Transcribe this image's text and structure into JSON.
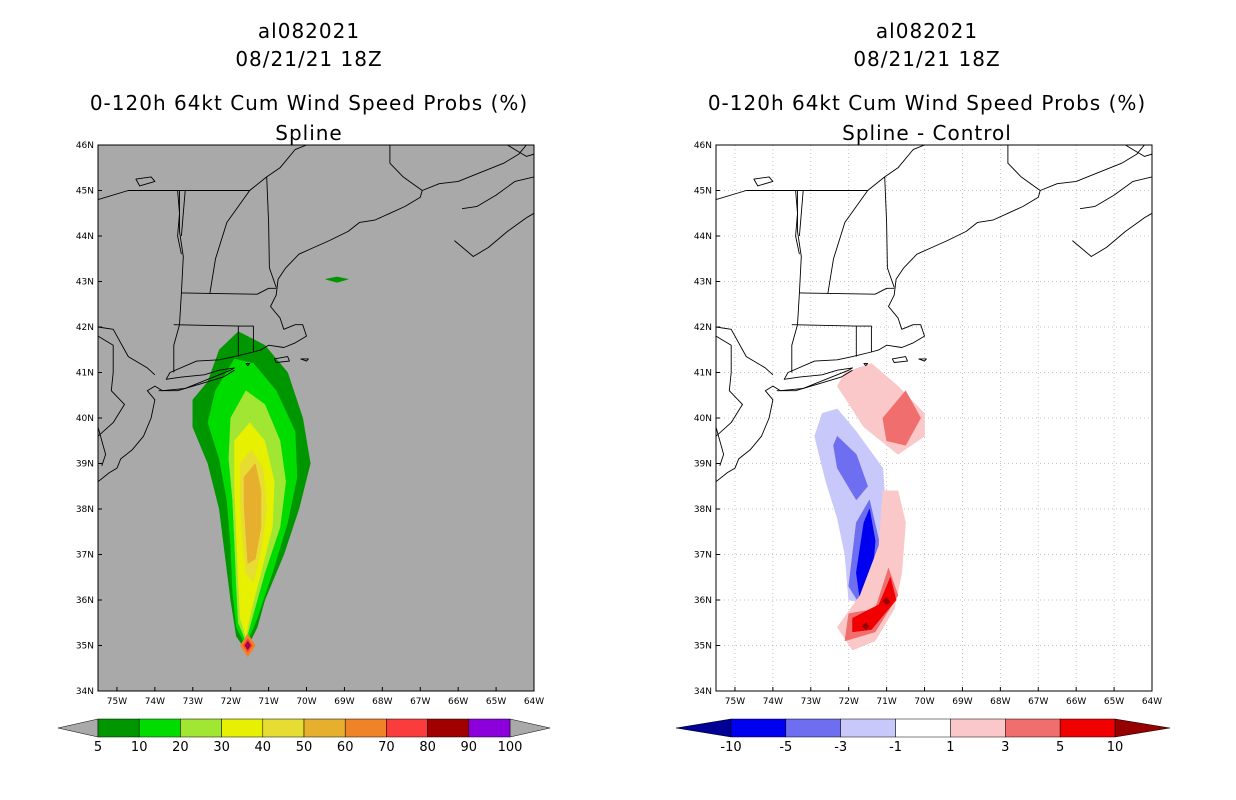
{
  "chart_data": [
    {
      "type": "heatmap",
      "panel": "left",
      "title_lines": [
        "al082021",
        "08/21/21 18Z",
        "0-120h 64kt Cum Wind Speed Probs (%)",
        "Spline"
      ],
      "x_ticks": [
        "75W",
        "74W",
        "73W",
        "72W",
        "71W",
        "70W",
        "69W",
        "68W",
        "67W",
        "66W",
        "65W",
        "64W"
      ],
      "y_ticks": [
        "46N",
        "45N",
        "44N",
        "43N",
        "42N",
        "41N",
        "40N",
        "39N",
        "38N",
        "37N",
        "36N",
        "35N",
        "34N"
      ],
      "xlim": [
        -75.5,
        -64
      ],
      "ylim": [
        34,
        46
      ],
      "grid": false,
      "background": "#a9a9a9",
      "colorbar": {
        "labels": [
          "5",
          "10",
          "20",
          "30",
          "40",
          "50",
          "60",
          "70",
          "80",
          "90",
          "100"
        ],
        "colors": [
          "#009600",
          "#00dc00",
          "#a0e632",
          "#e6f000",
          "#e6dc32",
          "#e6af2d",
          "#f08228",
          "#fa3c3c",
          "#a00000",
          "#8c00dc"
        ],
        "under_color": "#a9a9a9",
        "over_color": "#a9a9a9"
      },
      "levels": [
        {
          "min": 5,
          "color": "#009600",
          "pts": [
            [
              -72.6,
              40.8
            ],
            [
              -72.3,
              41.5
            ],
            [
              -71.8,
              41.9
            ],
            [
              -71.1,
              41.6
            ],
            [
              -70.5,
              41.0
            ],
            [
              -70.1,
              40.0
            ],
            [
              -69.9,
              39.0
            ],
            [
              -70.2,
              38.0
            ],
            [
              -70.6,
              37.0
            ],
            [
              -71.1,
              36.0
            ],
            [
              -71.3,
              35.4
            ],
            [
              -71.6,
              34.9
            ],
            [
              -71.85,
              35.2
            ],
            [
              -72.0,
              36.0
            ],
            [
              -72.15,
              37.0
            ],
            [
              -72.3,
              38.0
            ],
            [
              -72.6,
              39.0
            ],
            [
              -73.0,
              39.8
            ],
            [
              -73.0,
              40.4
            ]
          ]
        },
        {
          "min": 10,
          "color": "#00dc00",
          "pts": [
            [
              -72.4,
              40.6
            ],
            [
              -71.9,
              41.3
            ],
            [
              -71.4,
              41.2
            ],
            [
              -70.8,
              40.6
            ],
            [
              -70.3,
              39.7
            ],
            [
              -70.25,
              38.7
            ],
            [
              -70.5,
              37.7
            ],
            [
              -70.9,
              36.6
            ],
            [
              -71.3,
              35.6
            ],
            [
              -71.6,
              35.0
            ],
            [
              -71.85,
              35.4
            ],
            [
              -71.95,
              36.2
            ],
            [
              -72.0,
              37.2
            ],
            [
              -72.1,
              38.2
            ],
            [
              -72.3,
              39.1
            ],
            [
              -72.6,
              39.9
            ]
          ]
        },
        {
          "min": 20,
          "color": "#a0e632",
          "pts": [
            [
              -72.0,
              40.0
            ],
            [
              -71.6,
              40.6
            ],
            [
              -71.1,
              40.3
            ],
            [
              -70.7,
              39.5
            ],
            [
              -70.55,
              38.6
            ],
            [
              -70.7,
              37.6
            ],
            [
              -71.1,
              36.6
            ],
            [
              -71.4,
              35.7
            ],
            [
              -71.6,
              35.1
            ],
            [
              -71.8,
              35.5
            ],
            [
              -71.85,
              36.3
            ],
            [
              -71.9,
              37.3
            ],
            [
              -71.95,
              38.2
            ],
            [
              -72.05,
              39.1
            ]
          ]
        },
        {
          "min": 30,
          "color": "#e6f000",
          "pts": [
            [
              -71.9,
              39.5
            ],
            [
              -71.5,
              39.9
            ],
            [
              -71.1,
              39.5
            ],
            [
              -70.85,
              38.6
            ],
            [
              -70.9,
              37.6
            ],
            [
              -71.2,
              36.6
            ],
            [
              -71.45,
              35.8
            ],
            [
              -71.6,
              35.2
            ],
            [
              -71.75,
              35.6
            ],
            [
              -71.8,
              36.4
            ],
            [
              -71.85,
              37.4
            ],
            [
              -71.9,
              38.5
            ]
          ]
        },
        {
          "min": 40,
          "color": "#e6dc32",
          "pts": [
            [
              -71.75,
              39.0
            ],
            [
              -71.45,
              39.3
            ],
            [
              -71.15,
              38.9
            ],
            [
              -71.05,
              38.0
            ],
            [
              -71.2,
              37.1
            ],
            [
              -71.4,
              36.4
            ],
            [
              -71.6,
              36.6
            ],
            [
              -71.7,
              37.4
            ],
            [
              -71.75,
              38.2
            ]
          ]
        },
        {
          "min": 50,
          "color": "#e6af2d",
          "pts": [
            [
              -71.65,
              38.7
            ],
            [
              -71.35,
              39.0
            ],
            [
              -71.2,
              38.4
            ],
            [
              -71.2,
              37.6
            ],
            [
              -71.35,
              36.9
            ],
            [
              -71.55,
              36.8
            ],
            [
              -71.6,
              37.4
            ],
            [
              -71.65,
              38.1
            ]
          ]
        },
        {
          "min": 60,
          "color": "#f08228",
          "pts": [
            [
              -71.55,
              35.25
            ],
            [
              -71.75,
              35.0
            ],
            [
              -71.55,
              34.75
            ],
            [
              -71.35,
              35.0
            ]
          ]
        },
        {
          "min": 70,
          "color": "#fa3c3c",
          "pts": [
            [
              -71.55,
              35.15
            ],
            [
              -71.67,
              35.0
            ],
            [
              -71.55,
              34.85
            ],
            [
              -71.43,
              35.0
            ]
          ]
        },
        {
          "min": 80,
          "color": "#a00000",
          "pts": [
            [
              -71.55,
              35.09
            ],
            [
              -71.62,
              35.0
            ],
            [
              -71.55,
              34.91
            ],
            [
              -71.48,
              35.0
            ]
          ]
        },
        {
          "min": 90,
          "color": "#8c00dc",
          "pts": [
            [
              -71.55,
              35.04
            ],
            [
              -71.58,
              35.0
            ],
            [
              -71.55,
              34.96
            ],
            [
              -71.52,
              35.0
            ]
          ]
        },
        {
          "min": 5,
          "color": "#009600",
          "pts": [
            [
              -69.5,
              43.05
            ],
            [
              -69.2,
              43.1
            ],
            [
              -68.9,
              43.05
            ],
            [
              -69.2,
              42.98
            ]
          ]
        }
      ]
    },
    {
      "type": "heatmap",
      "panel": "right",
      "title_lines": [
        "al082021",
        "08/21/21 18Z",
        "0-120h 64kt Cum Wind Speed Probs (%)",
        "Spline - Control"
      ],
      "x_ticks": [
        "75W",
        "74W",
        "73W",
        "72W",
        "71W",
        "70W",
        "69W",
        "68W",
        "67W",
        "66W",
        "65W",
        "64W"
      ],
      "y_ticks": [
        "46N",
        "45N",
        "44N",
        "43N",
        "42N",
        "41N",
        "40N",
        "39N",
        "38N",
        "37N",
        "36N",
        "35N",
        "34N"
      ],
      "xlim": [
        -75.5,
        -64
      ],
      "ylim": [
        34,
        46
      ],
      "grid": true,
      "background": "#ffffff",
      "colorbar": {
        "labels": [
          "-10",
          "-5",
          "-3",
          "-1",
          "1",
          "3",
          "5",
          "10"
        ],
        "colors": [
          "#0000f0",
          "#6e6ef0",
          "#c8c8fa",
          "#ffffff",
          "#fac8c8",
          "#f06e6e",
          "#f00000"
        ],
        "under_color": "#000096",
        "over_color": "#960000"
      },
      "levels": [
        {
          "min": 1,
          "color": "#fac8c8",
          "pts": [
            [
              -72.1,
              41.0
            ],
            [
              -71.4,
              41.2
            ],
            [
              -70.7,
              40.7
            ],
            [
              -70.0,
              40.1
            ],
            [
              -70.0,
              39.6
            ],
            [
              -70.7,
              39.2
            ],
            [
              -71.6,
              39.8
            ],
            [
              -72.3,
              40.7
            ]
          ]
        },
        {
          "min": 3,
          "color": "#f06e6e",
          "pts": [
            [
              -71.1,
              40.0
            ],
            [
              -70.5,
              40.6
            ],
            [
              -70.1,
              40.0
            ],
            [
              -70.5,
              39.4
            ],
            [
              -71.0,
              39.5
            ]
          ]
        },
        {
          "min": -3,
          "color": "#c8c8fa",
          "pts": [
            [
              -72.7,
              40.1
            ],
            [
              -72.3,
              40.2
            ],
            [
              -71.8,
              39.7
            ],
            [
              -71.1,
              38.9
            ],
            [
              -71.0,
              37.7
            ],
            [
              -71.1,
              36.6
            ],
            [
              -71.4,
              35.9
            ],
            [
              -72.0,
              36.0
            ],
            [
              -72.1,
              37.0
            ],
            [
              -72.3,
              37.8
            ],
            [
              -72.6,
              38.6
            ],
            [
              -72.9,
              39.6
            ]
          ]
        },
        {
          "min": -5,
          "color": "#6e6ef0",
          "pts": [
            [
              -72.3,
              39.6
            ],
            [
              -71.8,
              39.2
            ],
            [
              -71.5,
              38.5
            ],
            [
              -71.8,
              38.2
            ],
            [
              -72.3,
              38.9
            ],
            [
              -72.4,
              39.4
            ]
          ]
        },
        {
          "min": -5,
          "color": "#6e6ef0",
          "pts": [
            [
              -71.8,
              37.7
            ],
            [
              -71.45,
              38.2
            ],
            [
              -71.2,
              37.3
            ],
            [
              -71.3,
              36.2
            ],
            [
              -71.7,
              35.9
            ],
            [
              -72.0,
              36.3
            ]
          ]
        },
        {
          "min": -10,
          "color": "#0000f0",
          "pts": [
            [
              -71.6,
              37.7
            ],
            [
              -71.45,
              38.0
            ],
            [
              -71.3,
              37.3
            ],
            [
              -71.4,
              36.3
            ],
            [
              -71.7,
              36.0
            ],
            [
              -71.8,
              36.6
            ]
          ]
        },
        {
          "min": 1,
          "color": "#fac8c8",
          "pts": [
            [
              -71.1,
              38.4
            ],
            [
              -70.7,
              38.4
            ],
            [
              -70.5,
              37.7
            ],
            [
              -70.6,
              36.6
            ],
            [
              -70.8,
              35.8
            ],
            [
              -71.3,
              35.1
            ],
            [
              -71.9,
              34.9
            ],
            [
              -72.3,
              35.4
            ],
            [
              -71.7,
              36.1
            ],
            [
              -71.2,
              37.2
            ]
          ]
        },
        {
          "min": 3,
          "color": "#f06e6e",
          "pts": [
            [
              -70.95,
              36.7
            ],
            [
              -70.7,
              36.1
            ],
            [
              -71.3,
              35.3
            ],
            [
              -72.1,
              35.1
            ],
            [
              -72.0,
              35.7
            ],
            [
              -71.3,
              35.8
            ]
          ]
        },
        {
          "min": 5,
          "color": "#f00000",
          "pts": [
            [
              -70.9,
              36.5
            ],
            [
              -70.75,
              36.0
            ],
            [
              -71.4,
              35.35
            ],
            [
              -71.9,
              35.3
            ],
            [
              -71.9,
              35.6
            ],
            [
              -71.2,
              35.9
            ]
          ]
        },
        {
          "min": 10,
          "color": "#960000",
          "pts": [
            [
              -71.0,
              36.05
            ],
            [
              -70.9,
              35.95
            ],
            [
              -71.0,
              35.9
            ],
            [
              -71.1,
              35.98
            ]
          ]
        },
        {
          "min": 10,
          "color": "#960000",
          "pts": [
            [
              -71.55,
              35.5
            ],
            [
              -71.45,
              35.42
            ],
            [
              -71.55,
              35.35
            ],
            [
              -71.65,
              35.42
            ]
          ]
        }
      ]
    }
  ]
}
